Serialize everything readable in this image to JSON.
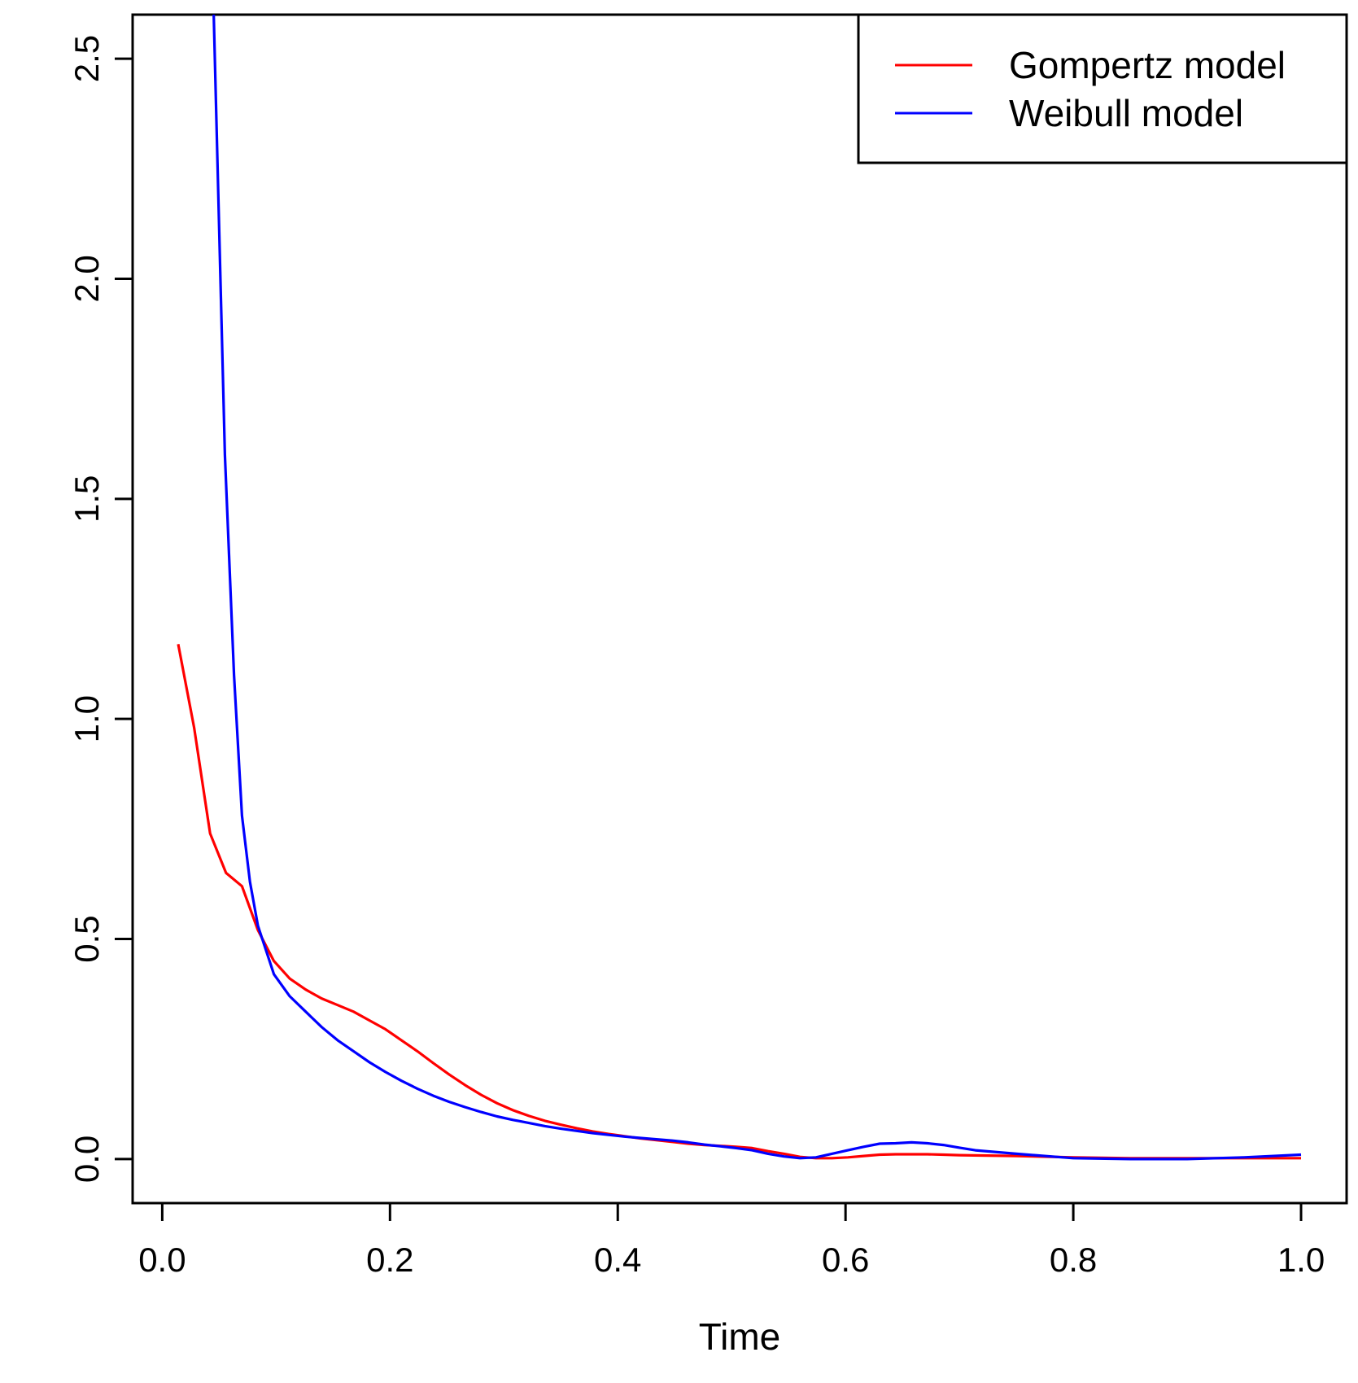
{
  "chart_data": {
    "type": "line",
    "title": "",
    "xlabel": "Time",
    "ylabel": "",
    "xlim": [
      -0.026,
      1.04
    ],
    "ylim": [
      -0.1,
      2.6
    ],
    "xticks": [
      0.0,
      0.2,
      0.4,
      0.6,
      0.8,
      1.0
    ],
    "xtick_labels": [
      "0.0",
      "0.2",
      "0.4",
      "0.6",
      "0.8",
      "1.0"
    ],
    "yticks": [
      0.0,
      0.5,
      1.0,
      1.5,
      2.0,
      2.5
    ],
    "ytick_labels": [
      "0.0",
      "0.5",
      "1.0",
      "1.5",
      "2.0",
      "2.5"
    ],
    "grid": false,
    "legend_position": "top-right",
    "series": [
      {
        "name": "Gompertz model",
        "color": "#ff0000",
        "x": [
          0.014,
          0.028,
          0.042,
          0.056,
          0.07,
          0.084,
          0.098,
          0.112,
          0.126,
          0.14,
          0.154,
          0.168,
          0.182,
          0.196,
          0.21,
          0.224,
          0.238,
          0.252,
          0.266,
          0.28,
          0.294,
          0.308,
          0.322,
          0.336,
          0.35,
          0.364,
          0.378,
          0.392,
          0.406,
          0.42,
          0.434,
          0.448,
          0.462,
          0.476,
          0.49,
          0.504,
          0.518,
          0.532,
          0.546,
          0.56,
          0.574,
          0.588,
          0.602,
          0.616,
          0.63,
          0.644,
          0.658,
          0.672,
          0.686,
          0.7,
          0.75,
          0.8,
          0.85,
          0.9,
          0.95,
          1.0
        ],
        "y": [
          1.17,
          0.98,
          0.74,
          0.65,
          0.62,
          0.52,
          0.45,
          0.41,
          0.385,
          0.365,
          0.35,
          0.335,
          0.315,
          0.295,
          0.27,
          0.245,
          0.218,
          0.192,
          0.168,
          0.146,
          0.127,
          0.111,
          0.098,
          0.087,
          0.078,
          0.07,
          0.063,
          0.057,
          0.052,
          0.047,
          0.043,
          0.039,
          0.035,
          0.032,
          0.03,
          0.028,
          0.025,
          0.018,
          0.012,
          0.005,
          0.002,
          0.002,
          0.004,
          0.007,
          0.01,
          0.011,
          0.011,
          0.011,
          0.01,
          0.009,
          0.007,
          0.004,
          0.002,
          0.002,
          0.002,
          0.002
        ]
      },
      {
        "name": "Weibull model",
        "color": "#0000ff",
        "x": [
          0.045,
          0.055,
          0.063,
          0.07,
          0.077,
          0.084,
          0.098,
          0.112,
          0.126,
          0.14,
          0.154,
          0.168,
          0.182,
          0.196,
          0.21,
          0.224,
          0.238,
          0.252,
          0.266,
          0.28,
          0.294,
          0.308,
          0.322,
          0.336,
          0.35,
          0.364,
          0.378,
          0.392,
          0.406,
          0.42,
          0.434,
          0.448,
          0.462,
          0.476,
          0.49,
          0.504,
          0.518,
          0.532,
          0.546,
          0.56,
          0.574,
          0.588,
          0.602,
          0.616,
          0.63,
          0.644,
          0.658,
          0.672,
          0.686,
          0.7,
          0.714,
          0.75,
          0.8,
          0.85,
          0.9,
          0.95,
          1.0
        ],
        "y": [
          2.62,
          1.6,
          1.1,
          0.78,
          0.63,
          0.53,
          0.42,
          0.37,
          0.335,
          0.3,
          0.27,
          0.245,
          0.22,
          0.198,
          0.178,
          0.16,
          0.144,
          0.13,
          0.118,
          0.107,
          0.097,
          0.089,
          0.082,
          0.075,
          0.069,
          0.064,
          0.059,
          0.055,
          0.051,
          0.048,
          0.045,
          0.042,
          0.038,
          0.033,
          0.029,
          0.025,
          0.02,
          0.012,
          0.006,
          0.002,
          0.004,
          0.012,
          0.02,
          0.028,
          0.035,
          0.036,
          0.038,
          0.036,
          0.032,
          0.026,
          0.02,
          0.012,
          0.002,
          0.0,
          0.0,
          0.004,
          0.01
        ]
      }
    ]
  }
}
